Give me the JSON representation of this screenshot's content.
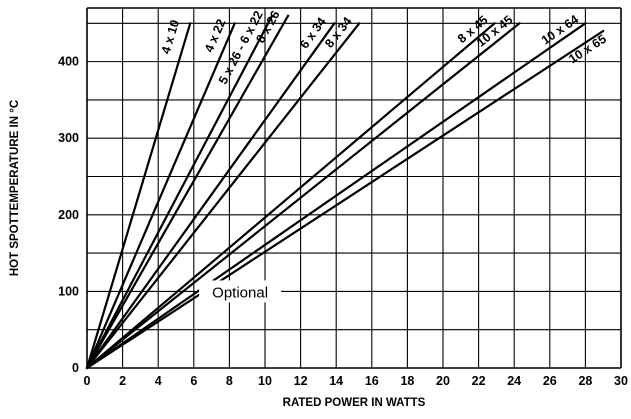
{
  "chart_data": {
    "type": "line",
    "title": "",
    "xlabel": "RATED POWER IN WATTS",
    "ylabel": "HOT SPOTTEMPERATURE IN °C",
    "xlim": [
      0,
      30
    ],
    "ylim": [
      0,
      470
    ],
    "xticks": [
      0,
      2,
      4,
      6,
      8,
      10,
      12,
      14,
      16,
      18,
      20,
      22,
      24,
      26,
      28,
      30
    ],
    "yticks": [
      0,
      100,
      200,
      300,
      400
    ],
    "xtick_labels": [
      "0",
      "2",
      "4",
      "6",
      "8",
      "10",
      "12",
      "14",
      "16",
      "18",
      "20",
      "22",
      "24",
      "26",
      "28",
      "30"
    ],
    "ytick_labels": [
      "0",
      "100",
      "200",
      "300",
      "400"
    ],
    "grid": true,
    "legend": "none",
    "annotation": "Optional",
    "series": [
      {
        "name": "4 x 10",
        "x": [
          0,
          5.8
        ],
        "y": [
          0,
          450
        ]
      },
      {
        "name": "4 x 22",
        "x": [
          0,
          8.3
        ],
        "y": [
          0,
          450
        ]
      },
      {
        "name": "5 x 26 - 6 x 22",
        "x": [
          0,
          10.4
        ],
        "y": [
          0,
          460
        ]
      },
      {
        "name": "8 x 26",
        "x": [
          0,
          11.3
        ],
        "y": [
          0,
          460
        ]
      },
      {
        "name": "6 x 34",
        "x": [
          0,
          13.9
        ],
        "y": [
          0,
          450
        ]
      },
      {
        "name": "8 x 34",
        "x": [
          0,
          15.3
        ],
        "y": [
          0,
          450
        ]
      },
      {
        "name": "8 x 45",
        "x": [
          0,
          22.9
        ],
        "y": [
          0,
          450
        ]
      },
      {
        "name": "10 x 45",
        "x": [
          0,
          24.3
        ],
        "y": [
          0,
          450
        ]
      },
      {
        "name": "10 x 64",
        "x": [
          0,
          28
        ],
        "y": [
          0,
          450
        ]
      },
      {
        "name": "10 x 65",
        "x": [
          0,
          29
        ],
        "y": [
          0,
          440
        ]
      }
    ]
  }
}
